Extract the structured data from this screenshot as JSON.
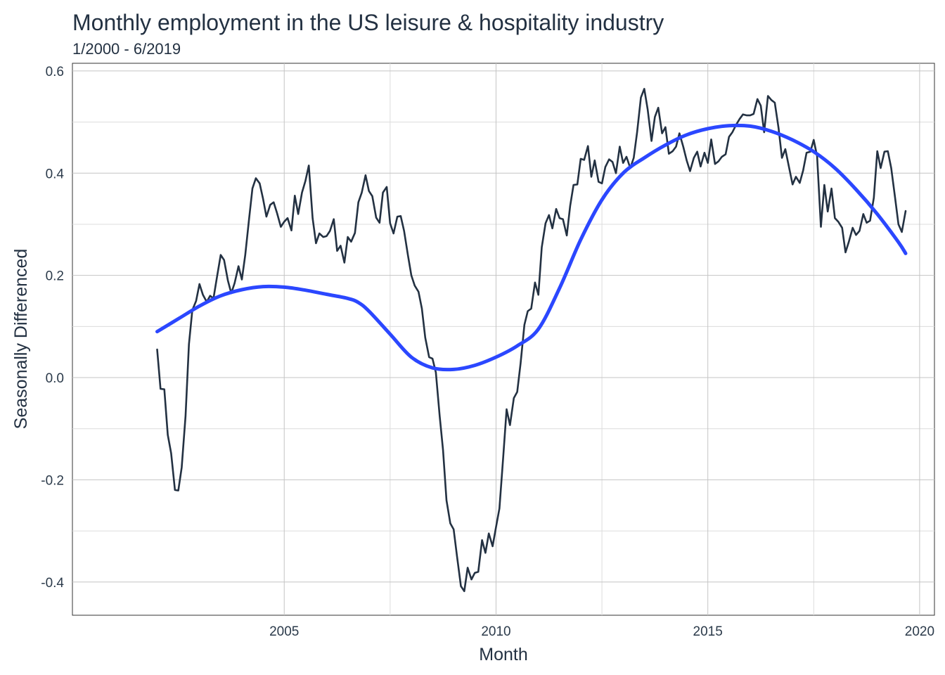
{
  "chart_data": {
    "type": "line",
    "title": "Monthly employment in the US leisure & hospitality industry",
    "subtitle": "1/2000 - 6/2019",
    "xlabel": "Month",
    "ylabel": "Seasonally Differenced",
    "xlim": [
      2000.0,
      2020.35
    ],
    "ylim": [
      -0.465,
      0.615
    ],
    "x_ticks": [
      {
        "value": 2005,
        "label": "2005"
      },
      {
        "value": 2010,
        "label": "2010"
      },
      {
        "value": 2015,
        "label": "2015"
      },
      {
        "value": 2020,
        "label": "2020"
      }
    ],
    "y_ticks": [
      {
        "value": -0.4,
        "label": "-0.4"
      },
      {
        "value": -0.2,
        "label": "-0.2"
      },
      {
        "value": 0.0,
        "label": "0.0"
      },
      {
        "value": 0.2,
        "label": "0.2"
      },
      {
        "value": 0.4,
        "label": "0.4"
      },
      {
        "value": 0.6,
        "label": "0.6"
      }
    ],
    "grid": true,
    "series": [
      {
        "style": "line",
        "color": "#233142",
        "points": [
          [
            2002.0,
            0.055
          ],
          [
            2002.08,
            -0.022
          ],
          [
            2002.17,
            -0.023
          ],
          [
            2002.25,
            -0.112
          ],
          [
            2002.33,
            -0.148
          ],
          [
            2002.42,
            -0.22
          ],
          [
            2002.5,
            -0.221
          ],
          [
            2002.58,
            -0.176
          ],
          [
            2002.67,
            -0.075
          ],
          [
            2002.75,
            0.065
          ],
          [
            2002.83,
            0.132
          ],
          [
            2002.92,
            0.15
          ],
          [
            2003.0,
            0.183
          ],
          [
            2003.08,
            0.162
          ],
          [
            2003.17,
            0.148
          ],
          [
            2003.25,
            0.16
          ],
          [
            2003.33,
            0.155
          ],
          [
            2003.42,
            0.2
          ],
          [
            2003.5,
            0.24
          ],
          [
            2003.58,
            0.23
          ],
          [
            2003.67,
            0.19
          ],
          [
            2003.75,
            0.165
          ],
          [
            2003.83,
            0.185
          ],
          [
            2003.92,
            0.218
          ],
          [
            2004.0,
            0.192
          ],
          [
            2004.08,
            0.24
          ],
          [
            2004.17,
            0.31
          ],
          [
            2004.25,
            0.37
          ],
          [
            2004.33,
            0.39
          ],
          [
            2004.42,
            0.38
          ],
          [
            2004.5,
            0.35
          ],
          [
            2004.58,
            0.315
          ],
          [
            2004.67,
            0.338
          ],
          [
            2004.75,
            0.343
          ],
          [
            2004.83,
            0.322
          ],
          [
            2004.92,
            0.295
          ],
          [
            2005.0,
            0.305
          ],
          [
            2005.08,
            0.312
          ],
          [
            2005.17,
            0.288
          ],
          [
            2005.25,
            0.356
          ],
          [
            2005.33,
            0.32
          ],
          [
            2005.42,
            0.362
          ],
          [
            2005.5,
            0.385
          ],
          [
            2005.58,
            0.415
          ],
          [
            2005.67,
            0.312
          ],
          [
            2005.75,
            0.263
          ],
          [
            2005.83,
            0.282
          ],
          [
            2005.92,
            0.275
          ],
          [
            2006.0,
            0.277
          ],
          [
            2006.08,
            0.287
          ],
          [
            2006.17,
            0.31
          ],
          [
            2006.25,
            0.248
          ],
          [
            2006.33,
            0.258
          ],
          [
            2006.42,
            0.225
          ],
          [
            2006.5,
            0.275
          ],
          [
            2006.58,
            0.266
          ],
          [
            2006.67,
            0.283
          ],
          [
            2006.75,
            0.343
          ],
          [
            2006.83,
            0.362
          ],
          [
            2006.92,
            0.396
          ],
          [
            2007.0,
            0.365
          ],
          [
            2007.08,
            0.355
          ],
          [
            2007.17,
            0.313
          ],
          [
            2007.25,
            0.303
          ],
          [
            2007.33,
            0.362
          ],
          [
            2007.42,
            0.373
          ],
          [
            2007.5,
            0.302
          ],
          [
            2007.58,
            0.282
          ],
          [
            2007.67,
            0.315
          ],
          [
            2007.75,
            0.316
          ],
          [
            2007.83,
            0.287
          ],
          [
            2007.92,
            0.24
          ],
          [
            2008.0,
            0.2
          ],
          [
            2008.08,
            0.18
          ],
          [
            2008.17,
            0.168
          ],
          [
            2008.25,
            0.135
          ],
          [
            2008.33,
            0.078
          ],
          [
            2008.42,
            0.04
          ],
          [
            2008.5,
            0.037
          ],
          [
            2008.58,
            0.01
          ],
          [
            2008.67,
            -0.075
          ],
          [
            2008.75,
            -0.142
          ],
          [
            2008.83,
            -0.24
          ],
          [
            2008.92,
            -0.285
          ],
          [
            2009.0,
            -0.297
          ],
          [
            2009.08,
            -0.35
          ],
          [
            2009.17,
            -0.408
          ],
          [
            2009.25,
            -0.418
          ],
          [
            2009.33,
            -0.372
          ],
          [
            2009.42,
            -0.395
          ],
          [
            2009.5,
            -0.382
          ],
          [
            2009.58,
            -0.38
          ],
          [
            2009.67,
            -0.318
          ],
          [
            2009.75,
            -0.343
          ],
          [
            2009.83,
            -0.305
          ],
          [
            2009.92,
            -0.33
          ],
          [
            2010.0,
            -0.292
          ],
          [
            2010.08,
            -0.256
          ],
          [
            2010.17,
            -0.155
          ],
          [
            2010.25,
            -0.062
          ],
          [
            2010.33,
            -0.093
          ],
          [
            2010.42,
            -0.04
          ],
          [
            2010.5,
            -0.028
          ],
          [
            2010.58,
            0.028
          ],
          [
            2010.67,
            0.103
          ],
          [
            2010.75,
            0.13
          ],
          [
            2010.83,
            0.135
          ],
          [
            2010.92,
            0.186
          ],
          [
            2011.0,
            0.162
          ],
          [
            2011.08,
            0.255
          ],
          [
            2011.17,
            0.302
          ],
          [
            2011.25,
            0.318
          ],
          [
            2011.33,
            0.292
          ],
          [
            2011.42,
            0.33
          ],
          [
            2011.5,
            0.312
          ],
          [
            2011.58,
            0.31
          ],
          [
            2011.67,
            0.278
          ],
          [
            2011.75,
            0.336
          ],
          [
            2011.83,
            0.377
          ],
          [
            2011.92,
            0.378
          ],
          [
            2012.0,
            0.428
          ],
          [
            2012.08,
            0.426
          ],
          [
            2012.17,
            0.453
          ],
          [
            2012.25,
            0.393
          ],
          [
            2012.33,
            0.425
          ],
          [
            2012.42,
            0.383
          ],
          [
            2012.5,
            0.38
          ],
          [
            2012.58,
            0.412
          ],
          [
            2012.67,
            0.427
          ],
          [
            2012.75,
            0.422
          ],
          [
            2012.83,
            0.4
          ],
          [
            2012.92,
            0.452
          ],
          [
            2013.0,
            0.42
          ],
          [
            2013.08,
            0.432
          ],
          [
            2013.17,
            0.41
          ],
          [
            2013.25,
            0.43
          ],
          [
            2013.33,
            0.48
          ],
          [
            2013.42,
            0.548
          ],
          [
            2013.5,
            0.565
          ],
          [
            2013.58,
            0.525
          ],
          [
            2013.67,
            0.463
          ],
          [
            2013.75,
            0.51
          ],
          [
            2013.83,
            0.528
          ],
          [
            2013.92,
            0.478
          ],
          [
            2014.0,
            0.49
          ],
          [
            2014.08,
            0.438
          ],
          [
            2014.17,
            0.443
          ],
          [
            2014.25,
            0.452
          ],
          [
            2014.33,
            0.478
          ],
          [
            2014.42,
            0.452
          ],
          [
            2014.5,
            0.425
          ],
          [
            2014.58,
            0.404
          ],
          [
            2014.67,
            0.43
          ],
          [
            2014.75,
            0.442
          ],
          [
            2014.83,
            0.413
          ],
          [
            2014.92,
            0.44
          ],
          [
            2015.0,
            0.42
          ],
          [
            2015.08,
            0.466
          ],
          [
            2015.17,
            0.418
          ],
          [
            2015.25,
            0.423
          ],
          [
            2015.33,
            0.432
          ],
          [
            2015.42,
            0.437
          ],
          [
            2015.5,
            0.471
          ],
          [
            2015.58,
            0.48
          ],
          [
            2015.67,
            0.495
          ],
          [
            2015.75,
            0.506
          ],
          [
            2015.83,
            0.515
          ],
          [
            2015.92,
            0.513
          ],
          [
            2016.0,
            0.513
          ],
          [
            2016.08,
            0.516
          ],
          [
            2016.17,
            0.545
          ],
          [
            2016.25,
            0.532
          ],
          [
            2016.33,
            0.48
          ],
          [
            2016.42,
            0.551
          ],
          [
            2016.5,
            0.543
          ],
          [
            2016.58,
            0.538
          ],
          [
            2016.67,
            0.488
          ],
          [
            2016.75,
            0.43
          ],
          [
            2016.83,
            0.447
          ],
          [
            2016.92,
            0.41
          ],
          [
            2017.0,
            0.378
          ],
          [
            2017.08,
            0.393
          ],
          [
            2017.17,
            0.381
          ],
          [
            2017.25,
            0.405
          ],
          [
            2017.33,
            0.44
          ],
          [
            2017.42,
            0.442
          ],
          [
            2017.5,
            0.465
          ],
          [
            2017.58,
            0.433
          ],
          [
            2017.67,
            0.295
          ],
          [
            2017.75,
            0.377
          ],
          [
            2017.83,
            0.325
          ],
          [
            2017.92,
            0.37
          ],
          [
            2018.0,
            0.312
          ],
          [
            2018.08,
            0.305
          ],
          [
            2018.17,
            0.293
          ],
          [
            2018.25,
            0.245
          ],
          [
            2018.33,
            0.266
          ],
          [
            2018.42,
            0.293
          ],
          [
            2018.5,
            0.279
          ],
          [
            2018.58,
            0.287
          ],
          [
            2018.67,
            0.32
          ],
          [
            2018.75,
            0.303
          ],
          [
            2018.83,
            0.307
          ],
          [
            2018.92,
            0.352
          ],
          [
            2019.0,
            0.443
          ],
          [
            2019.08,
            0.41
          ],
          [
            2019.17,
            0.442
          ],
          [
            2019.25,
            0.443
          ],
          [
            2019.33,
            0.41
          ],
          [
            2019.42,
            0.352
          ],
          [
            2019.5,
            0.3
          ],
          [
            2019.58,
            0.285
          ],
          [
            2019.67,
            0.326
          ]
        ]
      },
      {
        "style": "smooth",
        "color": "#2b47ff",
        "points": [
          [
            2002.0,
            0.09
          ],
          [
            2002.5,
            0.115
          ],
          [
            2003.0,
            0.14
          ],
          [
            2003.5,
            0.16
          ],
          [
            2004.0,
            0.172
          ],
          [
            2004.5,
            0.178
          ],
          [
            2005.0,
            0.177
          ],
          [
            2005.5,
            0.171
          ],
          [
            2006.0,
            0.163
          ],
          [
            2006.5,
            0.155
          ],
          [
            2006.75,
            0.147
          ],
          [
            2007.0,
            0.13
          ],
          [
            2007.5,
            0.085
          ],
          [
            2008.0,
            0.04
          ],
          [
            2008.5,
            0.019
          ],
          [
            2009.0,
            0.016
          ],
          [
            2009.5,
            0.024
          ],
          [
            2010.0,
            0.04
          ],
          [
            2010.5,
            0.062
          ],
          [
            2011.0,
            0.095
          ],
          [
            2011.5,
            0.175
          ],
          [
            2012.0,
            0.27
          ],
          [
            2012.5,
            0.348
          ],
          [
            2013.0,
            0.4
          ],
          [
            2013.5,
            0.43
          ],
          [
            2014.0,
            0.455
          ],
          [
            2014.5,
            0.475
          ],
          [
            2015.0,
            0.487
          ],
          [
            2015.5,
            0.493
          ],
          [
            2016.0,
            0.492
          ],
          [
            2016.5,
            0.482
          ],
          [
            2017.0,
            0.465
          ],
          [
            2017.5,
            0.442
          ],
          [
            2018.0,
            0.41
          ],
          [
            2018.5,
            0.368
          ],
          [
            2019.0,
            0.32
          ],
          [
            2019.5,
            0.265
          ],
          [
            2019.67,
            0.243
          ]
        ]
      }
    ]
  }
}
